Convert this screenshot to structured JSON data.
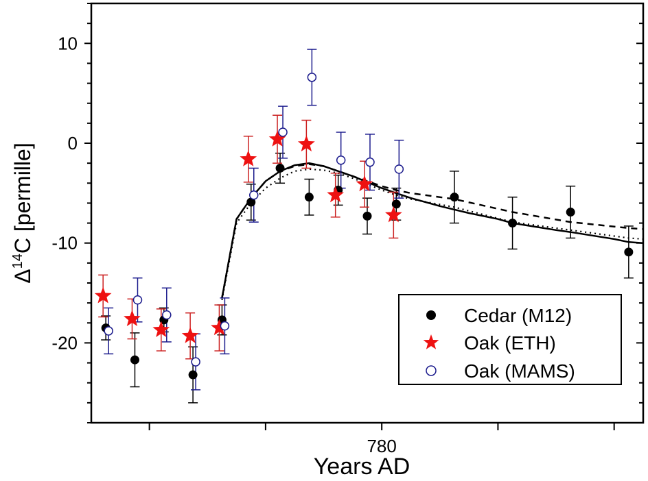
{
  "chart_data": {
    "type": "scatter",
    "xlabel": "Years AD",
    "ylabel_prefix": "Δ",
    "ylabel_sup": "14",
    "ylabel_rest": "C [permille]",
    "xlim": [
      770,
      789
    ],
    "ylim": [
      -28,
      14
    ],
    "x_tick_values": [
      772,
      776,
      780,
      784,
      788
    ],
    "x_tick_labels": [
      {
        "value": 780,
        "label": "780"
      }
    ],
    "y_tick_labels": [
      {
        "value": 10,
        "label": "10"
      },
      {
        "value": 0,
        "label": "0"
      },
      {
        "value": -10,
        "label": "-10"
      },
      {
        "value": -20,
        "label": "-20"
      }
    ],
    "y_minor_step": 2,
    "grid": false,
    "legend_position": "bottom-right",
    "series": [
      {
        "name": "Cedar (M12)",
        "marker": "filled-circle",
        "color": "#000000",
        "x": [
          770.5,
          771.5,
          772.5,
          773.5,
          774.5,
          775.5,
          776.5,
          777.5,
          778.5,
          779.5,
          780.5,
          782.5,
          784.5,
          786.5,
          788.5
        ],
        "y": [
          -18.5,
          -21.7,
          -17.7,
          -23.2,
          -17.7,
          -5.9,
          -2.5,
          -5.4,
          -4.7,
          -7.3,
          -6.1,
          -5.4,
          -8.0,
          -6.9,
          -10.9
        ],
        "err": [
          1.2,
          2.7,
          1.2,
          2.8,
          1.5,
          1.8,
          1.5,
          1.8,
          1.5,
          1.8,
          1.6,
          2.6,
          2.6,
          2.6,
          2.6
        ]
      },
      {
        "name": "Oak (ETH)",
        "marker": "star",
        "color": "#ee1111",
        "err_color": "#cc2222",
        "x": [
          770.5,
          771.5,
          772.5,
          773.5,
          774.5,
          775.5,
          776.5,
          777.5,
          778.5,
          779.5,
          780.5
        ],
        "y": [
          -15.3,
          -17.6,
          -18.7,
          -19.3,
          -18.5,
          -1.6,
          0.4,
          -0.1,
          -5.2,
          -4.1,
          -7.2
        ],
        "err": [
          2.1,
          2.0,
          2.1,
          2.3,
          2.3,
          2.3,
          2.4,
          2.4,
          2.2,
          2.3,
          2.3
        ]
      },
      {
        "name": "Oak (MAMS)",
        "marker": "open-circle",
        "color": "#1a1a8c",
        "x": [
          770.5,
          771.5,
          772.5,
          773.5,
          774.5,
          775.5,
          776.5,
          777.5,
          778.5,
          779.5,
          780.5
        ],
        "y": [
          -18.8,
          -15.7,
          -17.2,
          -21.9,
          -18.3,
          -5.2,
          1.1,
          6.6,
          -1.7,
          -1.9,
          -2.6
        ],
        "err": [
          2.3,
          2.2,
          2.7,
          2.8,
          2.8,
          2.7,
          2.6,
          2.8,
          2.8,
          2.8,
          2.9
        ]
      }
    ],
    "model_curves": [
      {
        "style": "solid",
        "color": "#000000",
        "x": [
          774.5,
          775,
          775.5,
          776,
          776.5,
          777,
          777.5,
          778,
          778.5,
          779,
          779.5,
          780,
          780.5,
          781,
          782,
          783,
          784,
          784.5,
          786,
          786.5,
          788,
          788.5,
          789
        ],
        "y": [
          -15.5,
          -7.6,
          -5.5,
          -3.8,
          -2.8,
          -2.2,
          -2.0,
          -2.3,
          -2.8,
          -3.3,
          -3.9,
          -4.5,
          -5.0,
          -5.5,
          -6.3,
          -7.0,
          -7.6,
          -8.0,
          -8.7,
          -8.9,
          -9.6,
          -9.9,
          -10.0
        ]
      },
      {
        "style": "dashed",
        "color": "#000000",
        "x": [
          774.5,
          775,
          775.5,
          776,
          776.5,
          777,
          777.5,
          778,
          778.5,
          779,
          779.5,
          780,
          780.5,
          781,
          782.5,
          784.5,
          786.5,
          788.5,
          789
        ],
        "y": [
          -15.5,
          -7.6,
          -5.5,
          -3.8,
          -2.8,
          -2.3,
          -2.1,
          -2.3,
          -2.8,
          -3.3,
          -3.8,
          -4.3,
          -4.7,
          -5.0,
          -5.6,
          -6.9,
          -7.9,
          -8.5,
          -8.6
        ]
      },
      {
        "style": "dotted",
        "color": "#000000",
        "x": [
          774.5,
          775,
          775.5,
          776,
          776.5,
          777,
          777.5,
          778,
          778.5,
          779,
          779.5,
          780,
          780.5,
          781,
          782.5,
          784.5,
          786.5,
          788.5,
          789
        ],
        "y": [
          -15.7,
          -8.0,
          -6.0,
          -4.5,
          -3.5,
          -2.8,
          -2.6,
          -2.7,
          -3.0,
          -3.5,
          -4.1,
          -4.7,
          -5.2,
          -5.6,
          -6.4,
          -7.9,
          -8.7,
          -9.5,
          -9.6
        ]
      }
    ]
  }
}
